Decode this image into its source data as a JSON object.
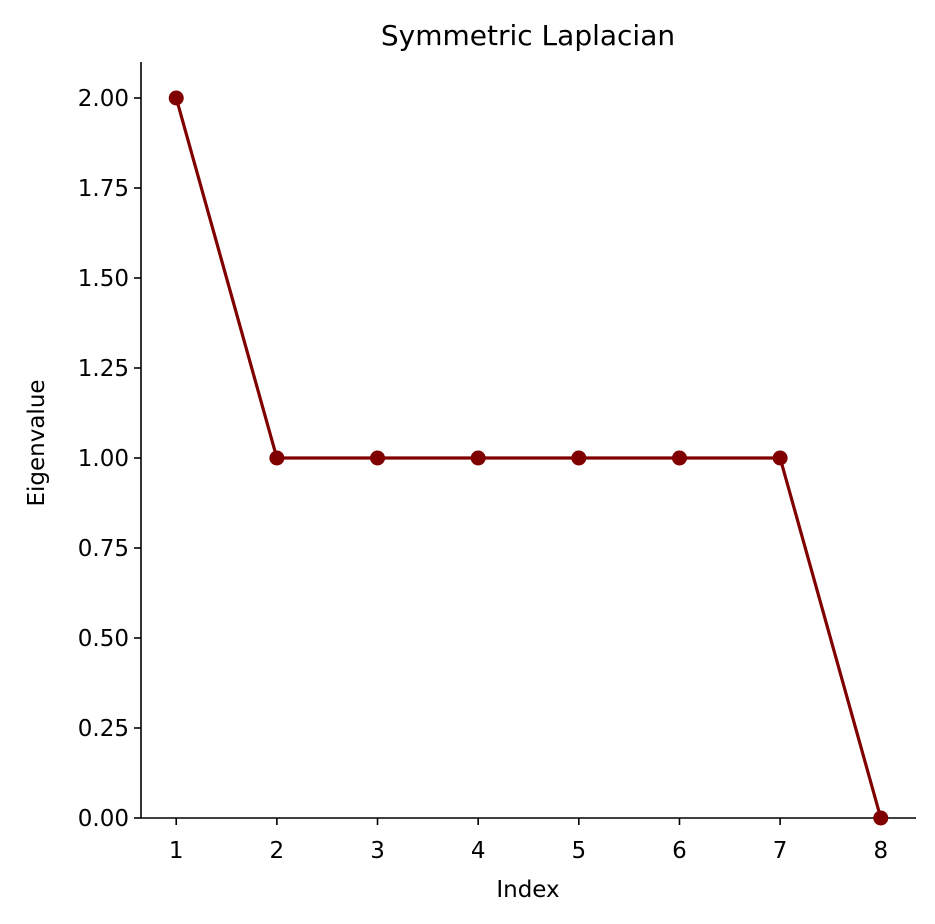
{
  "chart_data": {
    "type": "line",
    "title": "Symmetric Laplacian",
    "xlabel": "Index",
    "ylabel": "Eigenvalue",
    "x": [
      1,
      2,
      3,
      4,
      5,
      6,
      7,
      8
    ],
    "series": [
      {
        "values": [
          2.0,
          1.0,
          1.0,
          1.0,
          1.0,
          1.0,
          1.0,
          0.0
        ],
        "color": "#800000",
        "marker": "circle"
      }
    ],
    "x_ticks": [
      "1",
      "2",
      "3",
      "4",
      "5",
      "6",
      "7",
      "8"
    ],
    "y_ticks": [
      "0.00",
      "0.25",
      "0.50",
      "0.75",
      "1.00",
      "1.25",
      "1.50",
      "1.75",
      "2.00"
    ],
    "xlim": [
      0.65,
      8.35
    ],
    "ylim": [
      0,
      2.1
    ],
    "grid": false,
    "legend": "none"
  }
}
